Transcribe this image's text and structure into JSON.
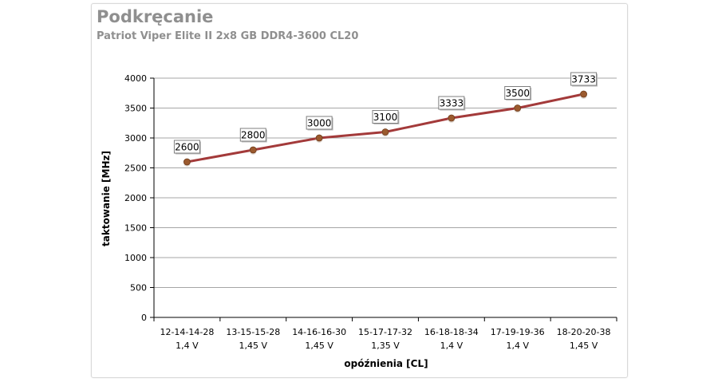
{
  "chart_data": {
    "type": "line",
    "title": "Podkręcanie",
    "subtitle": "Patriot Viper Elite II 2x8 GB DDR4-3600 CL20",
    "xlabel": "opóźnienia [CL]",
    "ylabel": "taktowanie [MHz]",
    "ylim": [
      0,
      4000
    ],
    "yticks": [
      0,
      500,
      1000,
      1500,
      2000,
      2500,
      3000,
      3500,
      4000
    ],
    "grid": true,
    "categories": [
      {
        "timings": "12-14-14-28",
        "voltage": "1,4 V"
      },
      {
        "timings": "13-15-15-28",
        "voltage": "1,45 V"
      },
      {
        "timings": "14-16-16-30",
        "voltage": "1,45 V"
      },
      {
        "timings": "15-17-17-32",
        "voltage": "1,35 V"
      },
      {
        "timings": "16-18-18-34",
        "voltage": "1,4 V"
      },
      {
        "timings": "17-19-19-36",
        "voltage": "1,4 V"
      },
      {
        "timings": "18-20-20-38",
        "voltage": "1,45 V"
      }
    ],
    "series": [
      {
        "name": "taktowanie",
        "values": [
          2600,
          2800,
          3000,
          3100,
          3333,
          3500,
          3733
        ]
      }
    ],
    "colors": {
      "line": "#a33a3a",
      "marker": "#9b5a2e",
      "grid": "#a6a6a6",
      "title": "#8f8f8f"
    }
  }
}
